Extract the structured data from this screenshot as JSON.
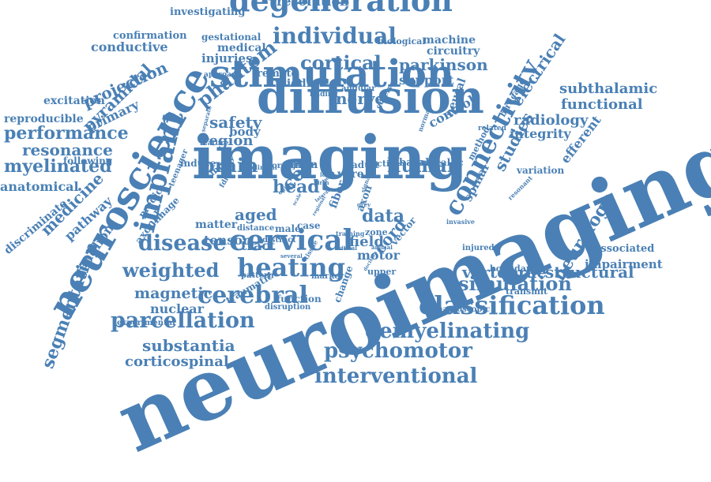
{
  "word_color": "#4a80b5",
  "background_color": "#ffffff",
  "words": [
    "neuroimaging",
    "imaging",
    "diffusion",
    "stimulation",
    "neuroscience",
    "degeneration",
    "connectivity",
    "implant",
    "individual",
    "cortical",
    "classification",
    "cervical",
    "heating",
    "cerebral",
    "parcellation",
    "disease",
    "demyelinating",
    "psychomotor",
    "interventional",
    "simulation",
    "structural",
    "vertebrae",
    "weighted",
    "segmentation",
    "performance",
    "resonance",
    "myelinated",
    "brain",
    "human",
    "head",
    "projection",
    "pyramidal",
    "primary",
    "parkinson",
    "reorganisation",
    "resolution",
    "investigating",
    "conductive",
    "confirmation",
    "gestational",
    "medical",
    "injuries",
    "phantom",
    "remote",
    "middle",
    "machine",
    "circuitry",
    "biological",
    "support",
    "subthalamic",
    "functional",
    "radiology",
    "integrity",
    "electrical",
    "birdcage",
    "efferent",
    "studies",
    "spinal",
    "variation",
    "neurology",
    "impairment",
    "associated",
    "boundaries",
    "transmit",
    "nerve",
    "control",
    "safety",
    "region",
    "body",
    "coil",
    "data",
    "cord",
    "field",
    "motor",
    "tract",
    "aged",
    "tensor",
    "matter",
    "magnetic",
    "nuclear",
    "traumatic",
    "substantia",
    "corticospinal",
    "experimental",
    "medicine",
    "pathway",
    "ganglion",
    "axonal",
    "anatomical",
    "discriminate",
    "reproducible",
    "excitation",
    "following",
    "area",
    "adult",
    "active",
    "basal",
    "metallic",
    "wire",
    "fiber",
    "axon",
    "injury",
    "induce",
    "teenager",
    "predict",
    "image",
    "zone",
    "case",
    "male",
    "distinct",
    "distance",
    "function",
    "disruption",
    "upper",
    "vector",
    "injured",
    "change",
    "macroscopic",
    "invasive",
    "marker",
    "pattern",
    "angular",
    "finding",
    "neural",
    "method",
    "related",
    "normal",
    "observed",
    "approach",
    "feature",
    "separate",
    "clinical",
    "correct",
    "object",
    "birth",
    "signal",
    "training",
    "critical",
    "several",
    "fdi",
    "outer",
    "tissue",
    "resonant",
    "lateral",
    "scale",
    "local",
    "regional",
    "decision",
    "animal",
    "grey",
    "born"
  ]
}
